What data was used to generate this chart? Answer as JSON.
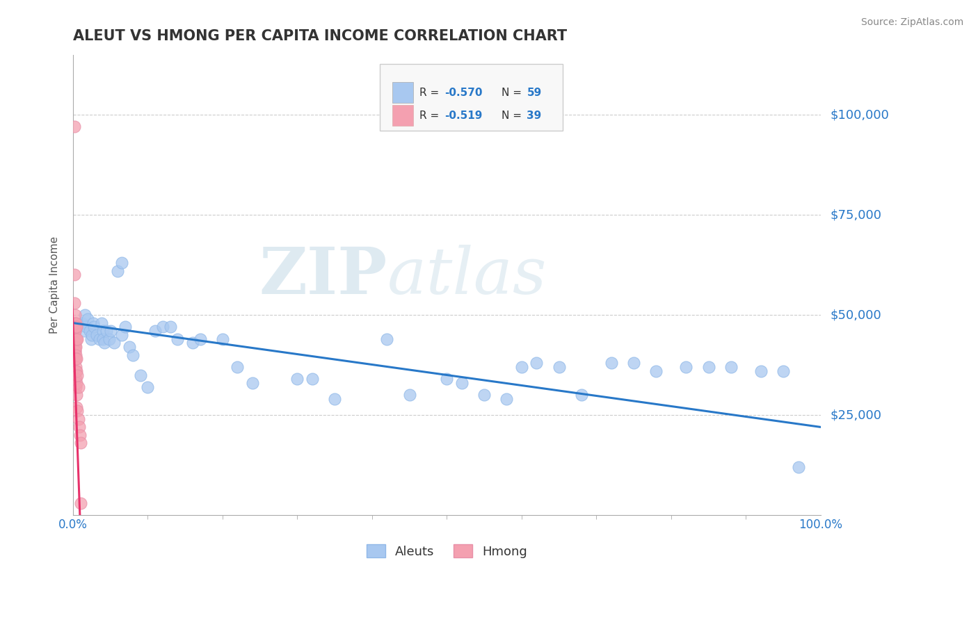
{
  "title": "ALEUT VS HMONG PER CAPITA INCOME CORRELATION CHART",
  "source": "Source: ZipAtlas.com",
  "ylabel": "Per Capita Income",
  "xlim": [
    0,
    1.0
  ],
  "ylim": [
    0,
    115000
  ],
  "ytick_values": [
    25000,
    50000,
    75000,
    100000
  ],
  "ytick_labels": [
    "$25,000",
    "$50,000",
    "$75,000",
    "$100,000"
  ],
  "aleut_color": "#a8c8f0",
  "hmong_color": "#f4a0b0",
  "trendline_aleut_color": "#2878c8",
  "trendline_hmong_color": "#e8306a",
  "legend_R_aleut": "-0.570",
  "legend_N_aleut": "59",
  "legend_R_hmong": "-0.519",
  "legend_N_hmong": "39",
  "watermark_ZIP": "ZIP",
  "watermark_atlas": "atlas",
  "background_color": "#ffffff",
  "grid_color": "#cccccc",
  "aleut_x": [
    0.012,
    0.015,
    0.016,
    0.018,
    0.02,
    0.022,
    0.024,
    0.025,
    0.027,
    0.028,
    0.032,
    0.035,
    0.038,
    0.04,
    0.04,
    0.042,
    0.045,
    0.048,
    0.05,
    0.055,
    0.06,
    0.065,
    0.065,
    0.07,
    0.075,
    0.08,
    0.09,
    0.1,
    0.11,
    0.12,
    0.13,
    0.14,
    0.16,
    0.17,
    0.2,
    0.22,
    0.24,
    0.3,
    0.32,
    0.35,
    0.42,
    0.45,
    0.5,
    0.52,
    0.55,
    0.58,
    0.6,
    0.62,
    0.65,
    0.68,
    0.72,
    0.75,
    0.78,
    0.82,
    0.85,
    0.88,
    0.92,
    0.95,
    0.97
  ],
  "aleut_y": [
    48000,
    46000,
    50000,
    47000,
    49000,
    46000,
    44000,
    45000,
    48000,
    47000,
    45000,
    44000,
    48000,
    46000,
    44000,
    43000,
    46000,
    44000,
    46000,
    43000,
    61000,
    63000,
    45000,
    47000,
    42000,
    40000,
    35000,
    32000,
    46000,
    47000,
    47000,
    44000,
    43000,
    44000,
    44000,
    37000,
    33000,
    34000,
    34000,
    29000,
    44000,
    30000,
    34000,
    33000,
    30000,
    29000,
    37000,
    38000,
    37000,
    30000,
    38000,
    38000,
    36000,
    37000,
    37000,
    37000,
    36000,
    36000,
    12000
  ],
  "hmong_x": [
    0.002,
    0.002,
    0.002,
    0.003,
    0.003,
    0.003,
    0.003,
    0.003,
    0.003,
    0.003,
    0.003,
    0.003,
    0.003,
    0.004,
    0.004,
    0.004,
    0.004,
    0.004,
    0.004,
    0.004,
    0.004,
    0.004,
    0.004,
    0.005,
    0.005,
    0.005,
    0.005,
    0.005,
    0.005,
    0.005,
    0.006,
    0.006,
    0.006,
    0.007,
    0.007,
    0.008,
    0.009,
    0.01,
    0.01
  ],
  "hmong_y": [
    97000,
    60000,
    53000,
    50000,
    48000,
    46000,
    46000,
    44000,
    43000,
    42000,
    41000,
    41000,
    39000,
    48000,
    47000,
    44000,
    42000,
    40000,
    39000,
    37000,
    36000,
    34000,
    32000,
    47000,
    44000,
    39000,
    36000,
    33000,
    30000,
    27000,
    44000,
    35000,
    26000,
    32000,
    24000,
    22000,
    20000,
    18000,
    3000
  ]
}
